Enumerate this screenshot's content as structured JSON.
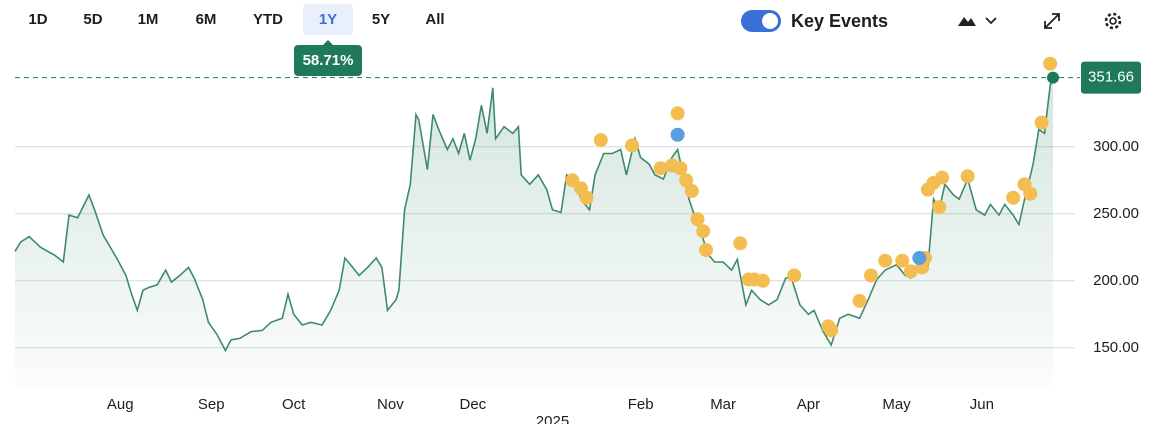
{
  "toolbar": {
    "ranges": [
      "1D",
      "5D",
      "1M",
      "6M",
      "YTD",
      "1Y",
      "5Y",
      "All"
    ],
    "selected": "1Y",
    "change": "58.71%",
    "toggle_label": "Key Events"
  },
  "chart_data": {
    "type": "line",
    "color": "#3d8b6c",
    "x": [
      0,
      2,
      5,
      9,
      14,
      17,
      19,
      22,
      26,
      28,
      31,
      33,
      36,
      39,
      41,
      43,
      45,
      47,
      50,
      53,
      55,
      58,
      61,
      63,
      66,
      68,
      71,
      74,
      76,
      79,
      83,
      87,
      90,
      94,
      96,
      98,
      101,
      104,
      108,
      111,
      114,
      116,
      118,
      121,
      124,
      127,
      129,
      131,
      134,
      135,
      137,
      139,
      141,
      142,
      145,
      147,
      149,
      152,
      154,
      156,
      158,
      160,
      162,
      164,
      166,
      168,
      169,
      172,
      175,
      177,
      178,
      181,
      184,
      187,
      189,
      192,
      194,
      197,
      199,
      202,
      204,
      207,
      210,
      213,
      215,
      218,
      220,
      223,
      225,
      228,
      231,
      233,
      235,
      237,
      240,
      242,
      244,
      246,
      249,
      252,
      254,
      257,
      259,
      262,
      265,
      268,
      271,
      273,
      276,
      279,
      281,
      284,
      287,
      290,
      293,
      297,
      300,
      303,
      306,
      310,
      313,
      315,
      318,
      321,
      323,
      325,
      327,
      330,
      332,
      335,
      338,
      341,
      343,
      346,
      348,
      351,
      353,
      355,
      358,
      360,
      362,
      364,
      365
    ],
    "values": [
      222,
      229,
      233,
      225,
      219,
      214,
      249,
      247,
      264,
      253,
      234,
      227,
      216,
      204,
      190,
      178,
      193,
      195,
      197,
      208,
      199,
      204,
      210,
      202,
      186,
      169,
      160,
      148,
      156,
      157,
      162,
      163,
      169,
      172,
      190,
      175,
      167,
      169,
      167,
      178,
      193,
      217,
      212,
      204,
      210,
      217,
      210,
      178,
      186,
      193,
      253,
      272,
      324,
      320,
      283,
      324,
      313,
      298,
      306,
      295,
      310,
      290,
      306,
      331,
      310,
      344,
      306,
      315,
      310,
      315,
      279,
      272,
      279,
      268,
      253,
      251,
      279,
      276,
      261,
      253,
      279,
      295,
      295,
      298,
      279,
      306,
      292,
      287,
      279,
      276,
      292,
      298,
      279,
      261,
      242,
      231,
      219,
      214,
      214,
      208,
      216,
      182,
      193,
      186,
      182,
      186,
      202,
      202,
      182,
      175,
      178,
      163,
      152,
      172,
      175,
      172,
      186,
      201,
      208,
      212,
      204,
      202,
      208,
      210,
      261,
      253,
      272,
      264,
      261,
      276,
      253,
      249,
      257,
      249,
      257,
      249,
      242,
      261,
      287,
      313,
      310,
      346,
      351.66
    ],
    "last_label": "351.66",
    "events": [
      {
        "color": "#f4bd52",
        "x": [
          196,
          199,
          201,
          206,
          217,
          227,
          231,
          233,
          234,
          236,
          238,
          240,
          242,
          243,
          255,
          258,
          260,
          263,
          274,
          286,
          287,
          297,
          301,
          306,
          312,
          315,
          319,
          320,
          321,
          323,
          325,
          326,
          335,
          351,
          355,
          357,
          361,
          364
        ],
        "y": [
          275,
          269,
          262,
          305,
          301,
          284,
          286,
          325,
          284,
          275,
          267,
          246,
          237,
          223,
          228,
          201,
          201,
          200,
          204,
          166,
          163,
          185,
          204,
          215,
          215,
          207,
          210,
          217,
          268,
          273,
          255,
          277,
          278,
          262,
          272,
          265,
          318,
          362
        ]
      },
      {
        "color": "#5b9ee0",
        "x": [
          233,
          318
        ],
        "y": [
          309,
          217
        ]
      }
    ],
    "xlim": [
      0,
      365
    ],
    "xticks": [
      {
        "value": 37,
        "label": "Aug"
      },
      {
        "value": 69,
        "label": "Sep"
      },
      {
        "value": 98,
        "label": "Oct"
      },
      {
        "value": 132,
        "label": "Nov"
      },
      {
        "value": 161,
        "label": "Dec"
      },
      {
        "value": 189,
        "label": "2025"
      },
      {
        "value": 220,
        "label": "Feb"
      },
      {
        "value": 249,
        "label": "Mar"
      },
      {
        "value": 279,
        "label": "Apr"
      },
      {
        "value": 310,
        "label": "May"
      },
      {
        "value": 340,
        "label": "Jun"
      }
    ],
    "ylim": [
      120,
      370
    ],
    "yticks": [
      {
        "value": 150,
        "label": "150.00"
      },
      {
        "value": 200,
        "label": "200.00"
      },
      {
        "value": 250,
        "label": "250.00"
      },
      {
        "value": 300,
        "label": "300.00"
      }
    ],
    "grid": true
  }
}
